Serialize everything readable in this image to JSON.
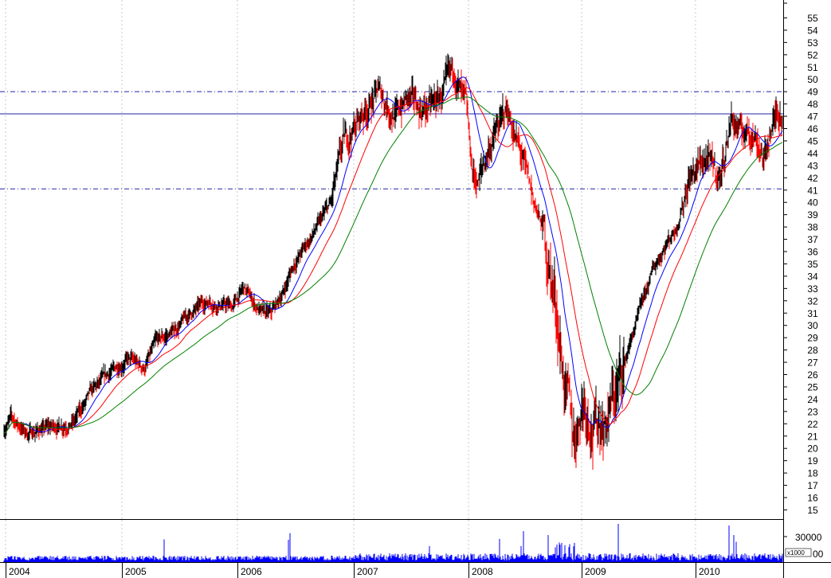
{
  "chart_data": {
    "type": "line",
    "subtype": "ohlc-price-with-volume",
    "x_labels": [
      "2004",
      "2005",
      "2006",
      "2007",
      "2008",
      "2009",
      "2010"
    ],
    "price_axis": {
      "range": [
        14,
        56
      ],
      "ticks": [
        15,
        16,
        17,
        18,
        19,
        20,
        21,
        22,
        23,
        24,
        25,
        26,
        27,
        28,
        29,
        30,
        31,
        32,
        33,
        34,
        35,
        36,
        37,
        38,
        39,
        40,
        41,
        42,
        43,
        44,
        45,
        46,
        47,
        48,
        49,
        50,
        51,
        52,
        53,
        54,
        55
      ]
    },
    "volume_axis": {
      "ticks": [
        "30000",
        "00"
      ],
      "unit_label": "x1000"
    },
    "grid": true,
    "reference_lines": [
      {
        "style": "dash-dot",
        "value": 49,
        "color": "#2222aa"
      },
      {
        "style": "solid",
        "value": 47.2,
        "color": "#2222aa"
      },
      {
        "style": "dash-dot",
        "value": 41.1,
        "color": "#2222aa"
      }
    ],
    "price_path": {
      "t": [
        2004.0,
        2004.06,
        2004.2,
        2004.3,
        2004.45,
        2004.6,
        2004.75,
        2004.9,
        2005.05,
        2005.2,
        2005.3,
        2005.45,
        2005.6,
        2005.75,
        2005.95,
        2006.05,
        2006.2,
        2006.28,
        2006.38,
        2006.48,
        2006.65,
        2006.8,
        2006.9,
        2007.05,
        2007.2,
        2007.35,
        2007.45,
        2007.55,
        2007.7,
        2007.85,
        2007.95,
        2008.0,
        2008.05,
        2008.15,
        2008.3,
        2008.4,
        2008.5,
        2008.6,
        2008.7,
        2008.8,
        2008.87,
        2008.95,
        2009.05,
        2009.15,
        2009.25,
        2009.35,
        2009.45,
        2009.55,
        2009.65,
        2009.75,
        2009.85,
        2010.0,
        2010.12,
        2010.22,
        2010.3,
        2010.38,
        2010.45,
        2010.5,
        2010.56,
        2010.62
      ],
      "price": [
        21.5,
        22.5,
        21.2,
        21.5,
        21.8,
        22.2,
        24.5,
        26.0,
        27.3,
        26.5,
        28.5,
        29.5,
        31.0,
        32.0,
        31.5,
        33.0,
        31.0,
        30.8,
        32.5,
        35.0,
        37.5,
        40.0,
        44.5,
        47.0,
        49.0,
        47.0,
        48.5,
        47.5,
        48.0,
        50.5,
        47.5,
        42.5,
        41.5,
        44.5,
        47.5,
        44.5,
        41.0,
        38.0,
        33.0,
        25.0,
        20.5,
        24.5,
        22.0,
        22.5,
        25.0,
        28.5,
        31.5,
        34.5,
        36.5,
        38.0,
        42.0,
        43.5,
        42.0,
        47.0,
        45.5,
        46.0,
        45.0,
        43.5,
        46.0,
        47.5
      ]
    },
    "moving_averages": [
      {
        "color": "#0000ff",
        "window": 5
      },
      {
        "color": "#ff0000",
        "window": 10
      },
      {
        "color": "#008000",
        "window": 20
      }
    ]
  },
  "colors": {
    "bars": "#000000",
    "bars_alt": "#ff0000",
    "volume": "#0000ff",
    "grid": "#c8c8c8",
    "reference": "#2222aa"
  }
}
